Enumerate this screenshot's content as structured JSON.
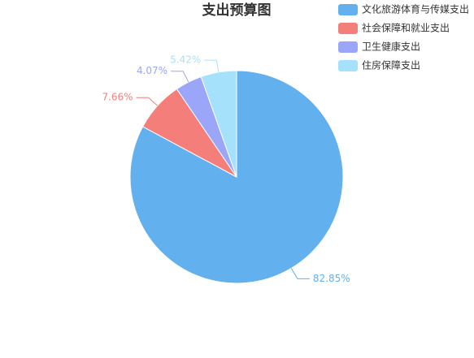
{
  "chart_data": {
    "type": "pie",
    "title": "支出预算图",
    "categories": [
      "文化旅游体育与传媒支出",
      "社会保障和就业支出",
      "卫生健康支出",
      "住房保障支出"
    ],
    "values": [
      82.85,
      7.66,
      4.07,
      5.42
    ],
    "value_labels": [
      "82.85%",
      "7.66%",
      "4.07%",
      "5.42%"
    ],
    "colors": [
      "#62b0ee",
      "#f47f7a",
      "#9ba6f8",
      "#a6e1fb"
    ],
    "legend": "top-right"
  }
}
